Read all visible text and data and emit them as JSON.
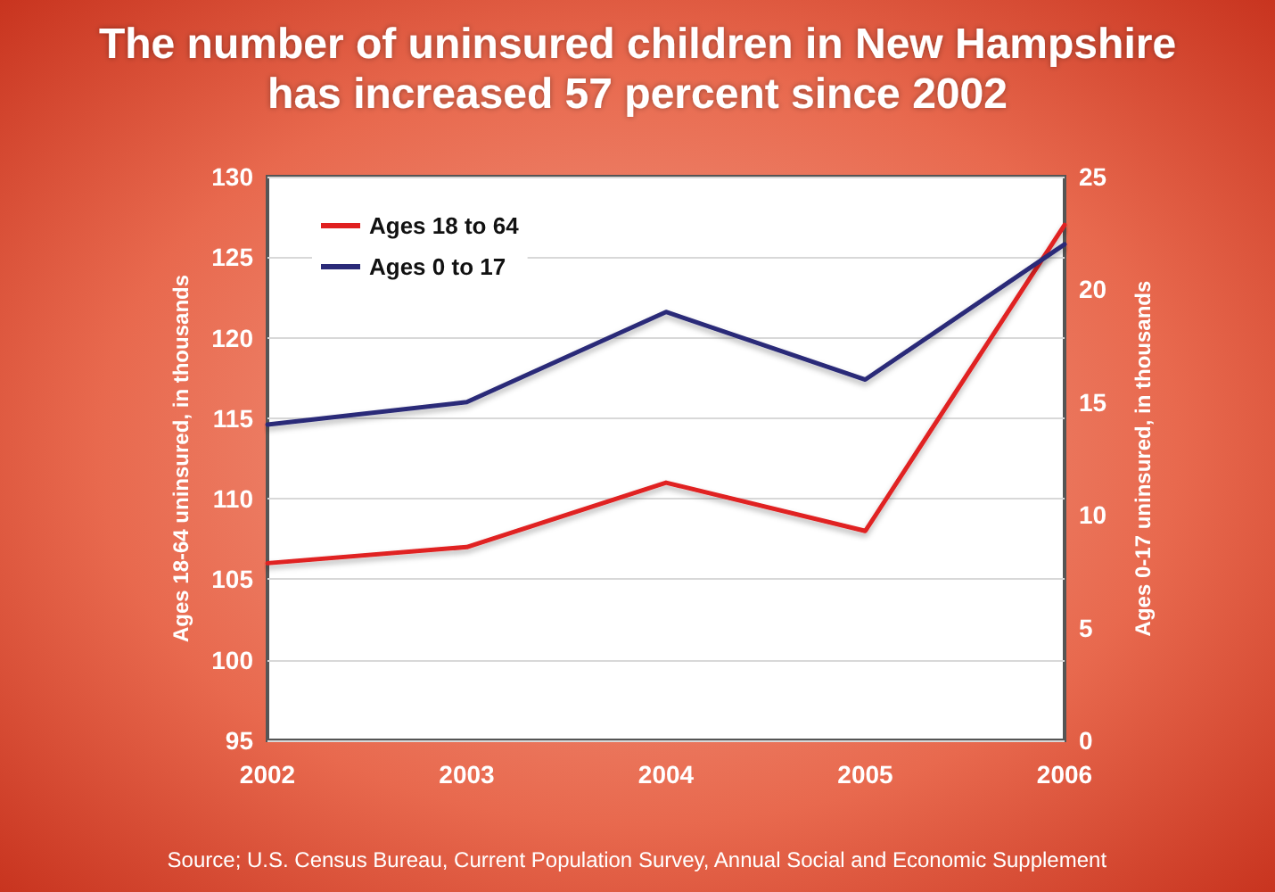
{
  "chart_data": {
    "type": "line",
    "title": "The number of uninsured children in New Hampshire\nhas increased 57 percent since 2002",
    "categories": [
      "2002",
      "2003",
      "2004",
      "2005",
      "2006"
    ],
    "series": [
      {
        "name": "Ages 18 to 64",
        "color": "#e02020",
        "values": [
          106,
          107,
          111,
          108,
          127
        ]
      },
      {
        "name": "Ages 0 to 17",
        "color": "#2a2a78",
        "values": [
          14,
          15,
          19,
          16,
          22
        ],
        "axis": "y2"
      }
    ],
    "ylabel": "Ages 18-64 uninsured, in thousands",
    "y2label": "Ages 0-17 uninsured, in thousands",
    "ylim": [
      95,
      130
    ],
    "yticks": [
      95,
      100,
      105,
      110,
      115,
      120,
      125,
      130
    ],
    "y2lim": [
      0,
      25
    ],
    "y2ticks": [
      0,
      5,
      10,
      15,
      20,
      25
    ],
    "grid": "y",
    "legend": "top left",
    "marker": "none",
    "annotations": [
      "Source; U.S. Census Bureau, Current Population Survey, Annual Social and Economic Supplement"
    ]
  }
}
